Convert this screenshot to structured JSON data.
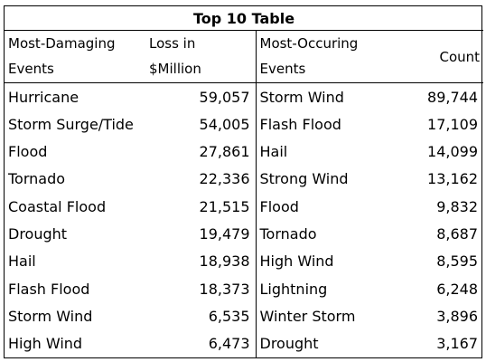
{
  "table": {
    "title": "Top 10 Table",
    "headers": {
      "damaging_event": [
        "Most-Damaging",
        "Events"
      ],
      "loss": [
        "Loss in",
        "$Million"
      ],
      "occurring_event": [
        "Most-Occuring",
        "Events"
      ],
      "count": "Count"
    },
    "rows": [
      {
        "damaging": "Hurricane",
        "loss": "59,057",
        "occurring": "Storm Wind",
        "count": "89,744"
      },
      {
        "damaging": "Storm Surge/Tide",
        "loss": "54,005",
        "occurring": "Flash Flood",
        "count": "17,109"
      },
      {
        "damaging": "Flood",
        "loss": "27,861",
        "occurring": "Hail",
        "count": "14,099"
      },
      {
        "damaging": "Tornado",
        "loss": "22,336",
        "occurring": "Strong Wind",
        "count": "13,162"
      },
      {
        "damaging": "Coastal Flood",
        "loss": "21,515",
        "occurring": "Flood",
        "count": "9,832"
      },
      {
        "damaging": "Drought",
        "loss": "19,479",
        "occurring": "Tornado",
        "count": "8,687"
      },
      {
        "damaging": "Hail",
        "loss": "18,938",
        "occurring": "High Wind",
        "count": "8,595"
      },
      {
        "damaging": "Flash Flood",
        "loss": "18,373",
        "occurring": "Lightning",
        "count": "6,248"
      },
      {
        "damaging": "Storm Wind",
        "loss": "6,535",
        "occurring": "Winter Storm",
        "count": "3,896"
      },
      {
        "damaging": "High Wind",
        "loss": "6,473",
        "occurring": "Drought",
        "count": "3,167"
      }
    ]
  }
}
